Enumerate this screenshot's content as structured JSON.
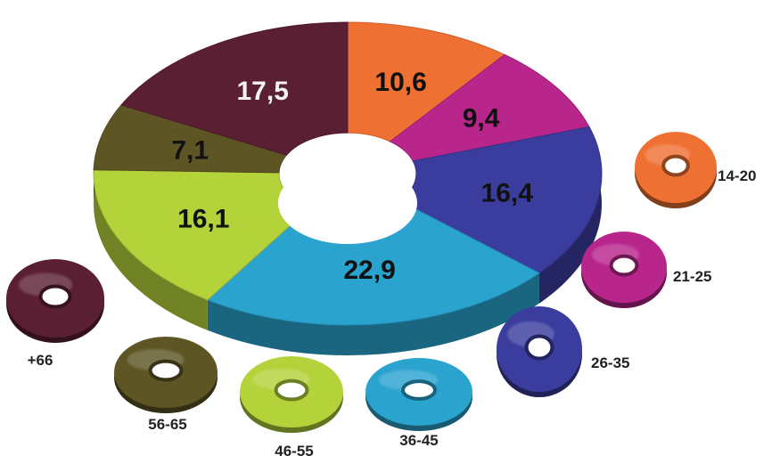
{
  "chart_data": {
    "type": "pie",
    "style": "3D donut",
    "categories": [
      "14-20",
      "21-25",
      "26-35",
      "36-45",
      "46-55",
      "56-65",
      "+66"
    ],
    "values": [
      10.6,
      9.4,
      16.4,
      22.9,
      16.1,
      7.1,
      17.5
    ],
    "value_labels": [
      "10,6",
      "9,4",
      "16,4",
      "22,9",
      "16,1",
      "7,1",
      "17,5"
    ],
    "colors": [
      "#ee7033",
      "#b8268c",
      "#3a3c9e",
      "#2aa3cf",
      "#b4d23a",
      "#5d5524",
      "#5a1f33"
    ],
    "legend": "donut icons arranged around the right and bottom of the chart"
  }
}
